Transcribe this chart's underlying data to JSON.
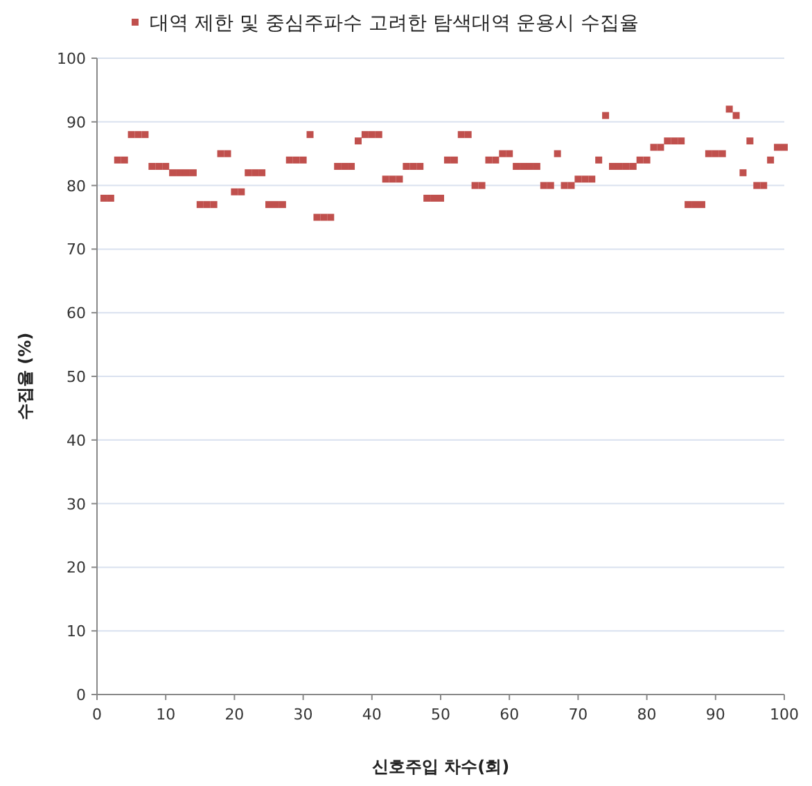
{
  "chart_data": {
    "type": "scatter",
    "xlabel": "신호주입 차수(회)",
    "ylabel": "수집율 (%)",
    "x": [
      1,
      2,
      3,
      4,
      5,
      6,
      7,
      8,
      9,
      10,
      11,
      12,
      13,
      14,
      15,
      16,
      17,
      18,
      19,
      20,
      21,
      22,
      23,
      24,
      25,
      26,
      27,
      28,
      29,
      30,
      31,
      32,
      33,
      34,
      35,
      36,
      37,
      38,
      39,
      40,
      41,
      42,
      43,
      44,
      45,
      46,
      47,
      48,
      49,
      50,
      51,
      52,
      53,
      54,
      55,
      56,
      57,
      58,
      59,
      60,
      61,
      62,
      63,
      64,
      65,
      66,
      67,
      68,
      69,
      70,
      71,
      72,
      73,
      74,
      75,
      76,
      77,
      78,
      79,
      80,
      81,
      82,
      83,
      84,
      85,
      86,
      87,
      88,
      89,
      90,
      91,
      92,
      93,
      94,
      95,
      96,
      97,
      98,
      99,
      100
    ],
    "series": [
      {
        "name": "대역 제한 및 중심주파수 고려한 탐색대역 운용시 수집율",
        "color": "#c0504d",
        "values": [
          78,
          78,
          84,
          84,
          88,
          88,
          88,
          83,
          83,
          83,
          82,
          82,
          82,
          82,
          77,
          77,
          77,
          85,
          85,
          79,
          79,
          82,
          82,
          82,
          77,
          77,
          77,
          84,
          84,
          84,
          88,
          75,
          75,
          75,
          83,
          83,
          83,
          87,
          88,
          88,
          88,
          81,
          81,
          81,
          83,
          83,
          83,
          78,
          78,
          78,
          84,
          84,
          88,
          88,
          80,
          80,
          84,
          84,
          85,
          85,
          83,
          83,
          83,
          83,
          80,
          80,
          85,
          80,
          80,
          81,
          81,
          81,
          84,
          91,
          83,
          83,
          83,
          83,
          84,
          84,
          86,
          86,
          87,
          87,
          87,
          77,
          77,
          77,
          85,
          85,
          85,
          92,
          91,
          82,
          87,
          80,
          80,
          84,
          86,
          86
        ]
      }
    ],
    "xlim": [
      0,
      100
    ],
    "xticks": [
      0,
      10,
      20,
      30,
      40,
      50,
      60,
      70,
      80,
      90,
      100
    ],
    "ylim": [
      0,
      100
    ],
    "yticks": [
      0,
      10,
      20,
      30,
      40,
      50,
      60,
      70,
      80,
      90,
      100
    ],
    "grid": "y",
    "legend": "top",
    "marker": "square"
  }
}
